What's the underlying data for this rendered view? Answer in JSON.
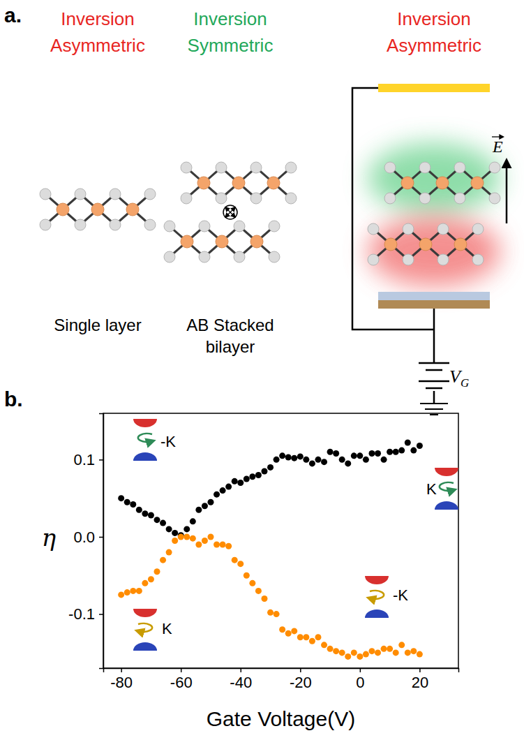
{
  "diagram": {
    "panel_label": "a.",
    "columns": [
      {
        "heading": "Inversion Asymmetric",
        "color": "#e8251f",
        "label": "Single layer"
      },
      {
        "heading": "Inversion Symmetric",
        "color": "#1fa85a",
        "label": "AB Stacked bilayer"
      },
      {
        "heading": "Inversion Asymmetric",
        "color": "#e8251f"
      }
    ],
    "field_label": "E",
    "gate_label": {
      "main": "V",
      "sub": "G"
    }
  },
  "chart_data": {
    "type": "scatter",
    "panel_label": "b.",
    "xlabel": "Gate Voltage(V)",
    "ylabel": "η",
    "x": [
      -80,
      -78,
      -76,
      -74,
      -72,
      -70,
      -68,
      -66,
      -64,
      -62,
      -60,
      -58,
      -56,
      -54,
      -52,
      -50,
      -48,
      -46,
      -44,
      -42,
      -40,
      -38,
      -36,
      -34,
      -32,
      -30,
      -28,
      -26,
      -24,
      -22,
      -20,
      -18,
      -16,
      -14,
      -12,
      -10,
      -8,
      -6,
      -4,
      -2,
      0,
      2,
      4,
      6,
      8,
      10,
      12,
      14,
      16,
      18,
      20
    ],
    "series": [
      {
        "color": "#000000",
        "marker": "circle",
        "values": [
          0.05,
          0.045,
          0.042,
          0.035,
          0.03,
          0.028,
          0.022,
          0.018,
          0.01,
          0.005,
          0.002,
          0.01,
          0.02,
          0.035,
          0.04,
          0.045,
          0.055,
          0.06,
          0.065,
          0.072,
          0.07,
          0.075,
          0.078,
          0.08,
          0.085,
          0.09,
          0.1,
          0.105,
          0.103,
          0.102,
          0.104,
          0.1,
          0.095,
          0.1,
          0.097,
          0.11,
          0.108,
          0.1,
          0.095,
          0.105,
          0.105,
          0.1,
          0.108,
          0.108,
          0.1,
          0.11,
          0.11,
          0.112,
          0.122,
          0.112,
          0.118
        ]
      },
      {
        "color": "#ff8c00",
        "marker": "circle",
        "values": [
          -0.075,
          -0.072,
          -0.07,
          -0.07,
          -0.06,
          -0.055,
          -0.045,
          -0.03,
          -0.02,
          -0.005,
          0.0,
          0.0,
          -0.002,
          -0.01,
          -0.005,
          0.0,
          -0.01,
          -0.01,
          -0.012,
          -0.03,
          -0.035,
          -0.05,
          -0.06,
          -0.07,
          -0.08,
          -0.098,
          -0.1,
          -0.12,
          -0.125,
          -0.122,
          -0.13,
          -0.13,
          -0.135,
          -0.13,
          -0.14,
          -0.145,
          -0.148,
          -0.15,
          -0.155,
          -0.15,
          -0.155,
          -0.152,
          -0.148,
          -0.15,
          -0.145,
          -0.145,
          -0.15,
          -0.14,
          -0.15,
          -0.148,
          -0.152
        ]
      }
    ],
    "xlim": [
      -86,
      33
    ],
    "ylim": [
      -0.17,
      0.16
    ],
    "xticks": [
      -80,
      -60,
      -40,
      -20,
      0,
      20
    ],
    "yticks": [
      -0.1,
      {
        "value": 0,
        "label": "0.0"
      },
      0.1
    ],
    "annotations": [
      "-K",
      "K",
      "K",
      "-K"
    ],
    "grid": false
  }
}
